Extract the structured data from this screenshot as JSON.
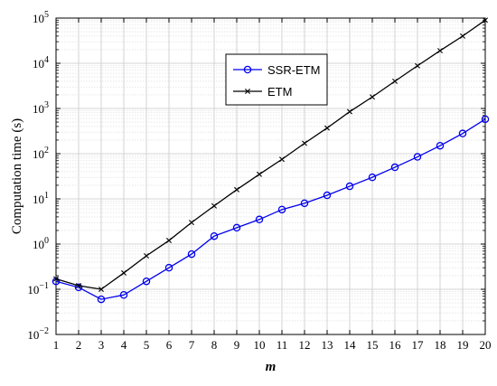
{
  "chart_data": {
    "type": "line",
    "xlabel": "m",
    "ylabel": "Computation time (s)",
    "yscale": "log",
    "xlim": [
      1,
      20
    ],
    "ylim": [
      0.01,
      100000
    ],
    "grid": true,
    "legend_position": "top-center",
    "x": [
      1,
      2,
      3,
      4,
      5,
      6,
      7,
      8,
      9,
      10,
      11,
      12,
      13,
      14,
      15,
      16,
      17,
      18,
      19,
      20
    ],
    "xticks": [
      "1",
      "2",
      "3",
      "4",
      "5",
      "6",
      "7",
      "8",
      "9",
      "10",
      "11",
      "12",
      "13",
      "14",
      "15",
      "16",
      "17",
      "18",
      "19",
      "20"
    ],
    "yticks": [
      {
        "value": 0.01,
        "label": "10",
        "exp": "−2"
      },
      {
        "value": 0.1,
        "label": "10",
        "exp": "−1"
      },
      {
        "value": 1,
        "label": "10",
        "exp": "0"
      },
      {
        "value": 10,
        "label": "10",
        "exp": "1"
      },
      {
        "value": 100,
        "label": "10",
        "exp": "2"
      },
      {
        "value": 1000,
        "label": "10",
        "exp": "3"
      },
      {
        "value": 10000,
        "label": "10",
        "exp": "4"
      },
      {
        "value": 100000,
        "label": "10",
        "exp": "5"
      }
    ],
    "series": [
      {
        "name": "SSR-ETM",
        "color": "#0000ee",
        "marker": "circle",
        "values": [
          0.15,
          0.11,
          0.06,
          0.075,
          0.15,
          0.3,
          0.6,
          1.5,
          2.3,
          3.5,
          5.8,
          8.0,
          12.0,
          19.0,
          30.0,
          50.0,
          85.0,
          150.0,
          280.0,
          580.0
        ]
      },
      {
        "name": "ETM",
        "color": "#000000",
        "marker": "x",
        "values": [
          0.17,
          0.12,
          0.1,
          0.23,
          0.55,
          1.2,
          3.0,
          7.0,
          16.0,
          35.0,
          75.0,
          170.0,
          370.0,
          850.0,
          1800.0,
          4000.0,
          8800.0,
          19000.0,
          40000.0,
          90000.0
        ]
      }
    ]
  }
}
